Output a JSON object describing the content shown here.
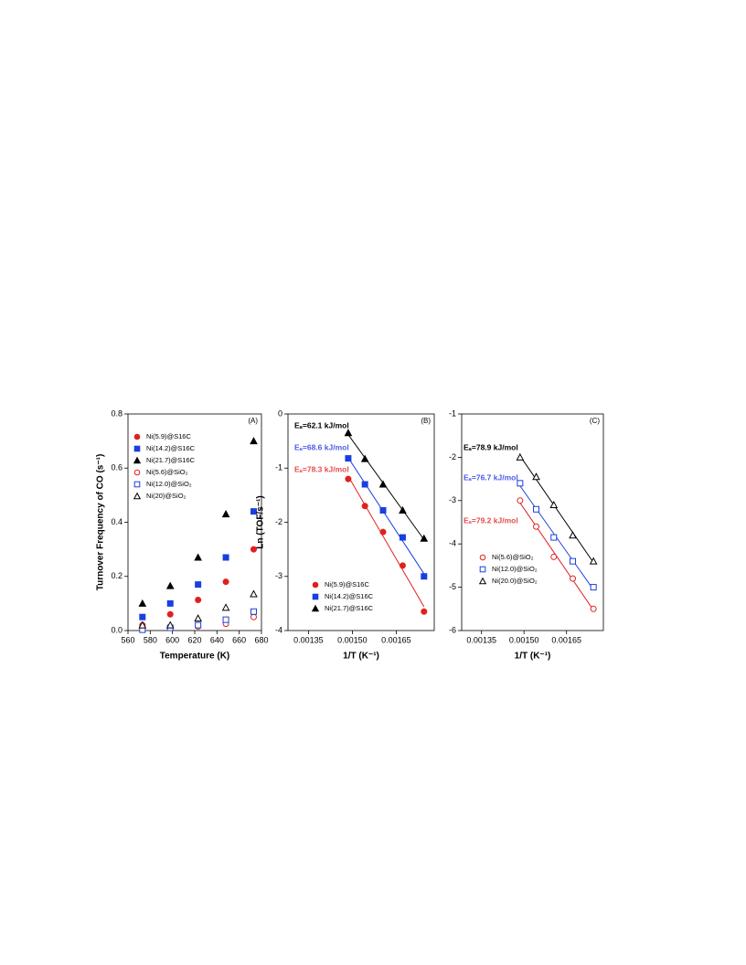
{
  "chart_data": [
    {
      "type": "scatter",
      "panel_label": "(A)",
      "x_label": "Temperature (K)",
      "y_label": "Turnover Frequency of CO (s⁻¹)",
      "x": [
        573,
        598,
        623,
        648,
        673
      ],
      "xlim": [
        560,
        680
      ],
      "xticks": [
        560,
        580,
        600,
        620,
        640,
        660,
        680
      ],
      "ylim": [
        0,
        0.8
      ],
      "yticks": [
        {
          "value": 0,
          "label": "0.0"
        },
        0.2,
        0.4,
        0.6,
        0.8
      ],
      "series": [
        {
          "name": "Ni(5.9)@S16C",
          "color": "#e02020",
          "marker": "circle",
          "filled": true,
          "values": [
            0.02,
            0.06,
            0.113,
            0.18,
            0.3
          ]
        },
        {
          "name": "Ni(14.2)@S16C",
          "color": "#1a3fe0",
          "marker": "square",
          "filled": true,
          "values": [
            0.05,
            0.1,
            0.17,
            0.27,
            0.44
          ]
        },
        {
          "name": "Ni(21.7)@S16C",
          "color": "#000000",
          "marker": "triangle",
          "filled": true,
          "values": [
            0.1,
            0.165,
            0.27,
            0.43,
            0.7
          ]
        },
        {
          "name": "Ni(5.6)@SiO₂",
          "color": "#e02020",
          "marker": "circle",
          "filled": false,
          "values": [
            0.01,
            0.01,
            0.015,
            0.025,
            0.05
          ]
        },
        {
          "name": "Ni(12.0)@SiO₂",
          "color": "#1a3fe0",
          "marker": "square",
          "filled": false,
          "values": [
            0.003,
            0.01,
            0.02,
            0.04,
            0.07
          ]
        },
        {
          "name": "Ni(20)@SiO₂",
          "color": "#000000",
          "marker": "triangle",
          "filled": false,
          "values": [
            0.02,
            0.02,
            0.045,
            0.085,
            0.135
          ]
        }
      ]
    },
    {
      "type": "scatter",
      "panel_label": "(B)",
      "x_label": "1/T (K⁻¹)",
      "y_label": "Ln (TOF/s⁻¹)",
      "fit_lines": true,
      "x": [
        0.001486,
        0.001543,
        0.001605,
        0.001672,
        0.001745
      ],
      "xlim": [
        0.00128,
        0.00178
      ],
      "xticks": [
        0.00135,
        {
          "value": 0.0015,
          "label": "0.00150"
        },
        0.00165
      ],
      "ylim": [
        -4,
        0
      ],
      "yticks": [
        0,
        -1,
        -2,
        -3,
        -4
      ],
      "annotations": [
        {
          "text": "Eₐ=62.1 kJ/mol",
          "color": "#000000"
        },
        {
          "text": "Eₐ=68.6 kJ/mol",
          "color": "#4a5ae8"
        },
        {
          "text": "Eₐ=78.3 kJ/mol",
          "color": "#e84a4a"
        }
      ],
      "series": [
        {
          "name": "Ni(5.9)@S16C",
          "color": "#e02020",
          "marker": "circle",
          "filled": true,
          "values": [
            -1.2,
            -1.7,
            -2.18,
            -2.8,
            -3.65
          ]
        },
        {
          "name": "Ni(14.2)@S16C",
          "color": "#1a3fe0",
          "marker": "square",
          "filled": true,
          "values": [
            -0.82,
            -1.3,
            -1.78,
            -2.28,
            -3.0
          ]
        },
        {
          "name": "Ni(21.7)@S16C",
          "color": "#000000",
          "marker": "triangle",
          "filled": true,
          "values": [
            -0.35,
            -0.83,
            -1.3,
            -1.78,
            -2.3
          ]
        }
      ]
    },
    {
      "type": "scatter",
      "panel_label": "(C)",
      "x_label": "1/T (K⁻¹)",
      "fit_lines": true,
      "x": [
        0.001486,
        0.001543,
        0.001605,
        0.001672,
        0.001745
      ],
      "xlim": [
        0.00128,
        0.00178
      ],
      "xticks": [
        0.00135,
        {
          "value": 0.0015,
          "label": "0.00150"
        },
        0.00165
      ],
      "ylim": [
        -6,
        -1
      ],
      "yticks": [
        -1,
        -2,
        -3,
        -4,
        -5,
        -6
      ],
      "annotations": [
        {
          "text": "Eₐ=78.9 kJ/mol",
          "color": "#000000"
        },
        {
          "text": "Eₐ=76.7 kJ/mol",
          "color": "#4a5ae8"
        },
        {
          "text": "Eₐ=79.2 kJ/mol",
          "color": "#e84a4a"
        }
      ],
      "series": [
        {
          "name": "Ni(5.6)@SiO₂",
          "color": "#e02020",
          "marker": "circle",
          "filled": false,
          "values": [
            -3.0,
            -3.6,
            -4.3,
            -4.8,
            -5.5
          ]
        },
        {
          "name": "Ni(12.0)@SiO₂",
          "color": "#1a3fe0",
          "marker": "square",
          "filled": false,
          "values": [
            -2.6,
            -3.2,
            -3.85,
            -4.4,
            -5.0
          ]
        },
        {
          "name": "Ni(20.0)@SiO₂",
          "color": "#000000",
          "marker": "triangle",
          "filled": false,
          "values": [
            -2.0,
            -2.45,
            -3.1,
            -3.8,
            -4.4
          ]
        }
      ]
    }
  ]
}
